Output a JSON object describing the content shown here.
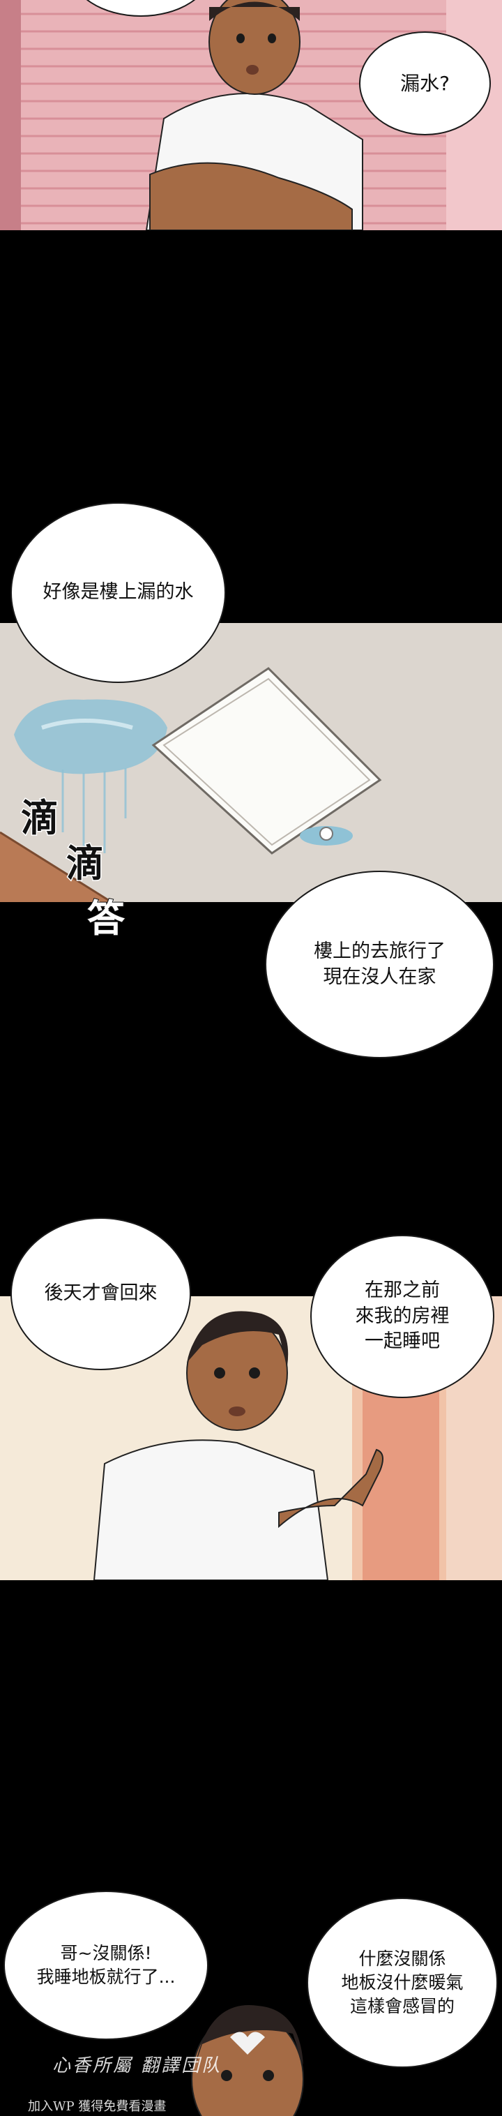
{
  "panels": [
    {
      "id": "p1",
      "bubbles": [
        "漏水?"
      ]
    },
    {
      "id": "p2",
      "bubbles": [
        "好像是樓上漏的水"
      ],
      "sfx": [
        "滴",
        "滴",
        "答"
      ]
    },
    {
      "id": "p3",
      "bubbles": [
        "樓上的去旅行了\n現在沒人在家"
      ]
    },
    {
      "id": "p4",
      "bubbles": [
        "後天才會回來",
        "在那之前\n來我的房裡\n一起睡吧"
      ]
    },
    {
      "id": "p5",
      "bubbles": [
        "哥~沒關係!\n我睡地板就行了...",
        "什麼沒關係\n地板沒什麼暖氣\n這樣會感冒的"
      ]
    }
  ],
  "watermark": {
    "line1": "心香所屬 翻譯団队",
    "line2": "加入WP 獲得免費看漫畫"
  },
  "colors": {
    "blinds": "#e9b3b8",
    "skin": "#a56b45",
    "shirt": "#f7f7f7",
    "ceiling": "#dcd6cf",
    "water": "#8fc2d6",
    "wall": "#f5ead9",
    "door": "#e79b80"
  }
}
